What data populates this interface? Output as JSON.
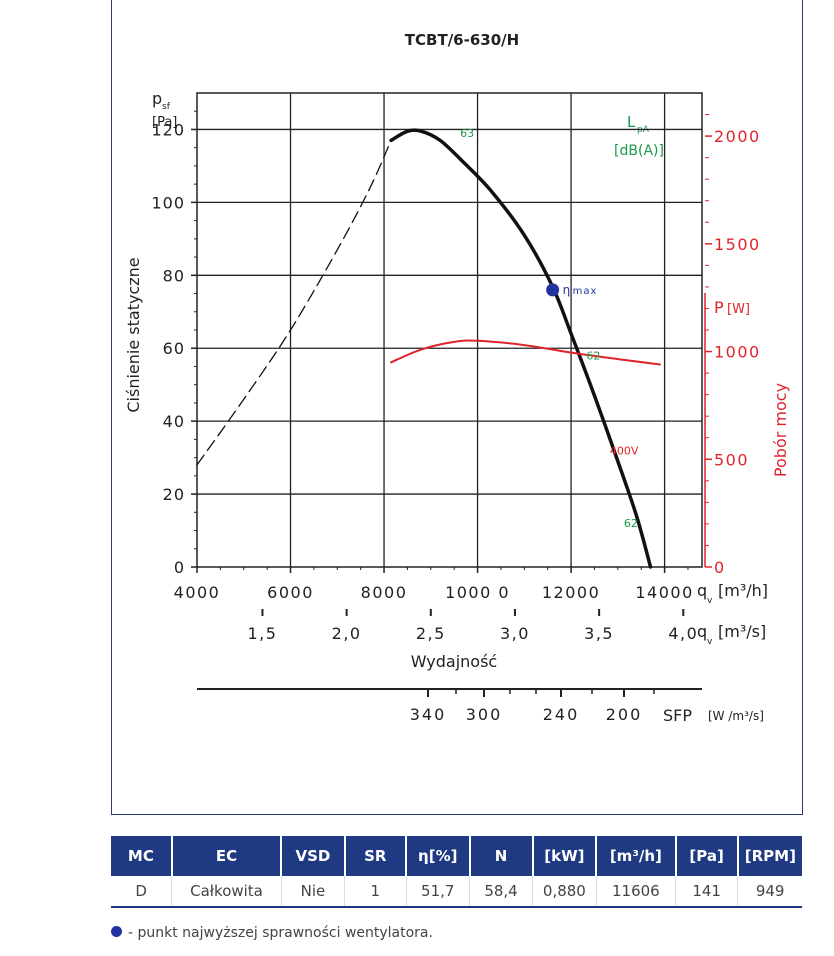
{
  "chart_data": {
    "type": "line",
    "title": "TCBT/6-630/H",
    "ylabel": "Ciśnienie statyczne",
    "y_symbol": "p",
    "y_symbol_sub": "sf",
    "y_unit": "[Pa]",
    "ylim": [
      0,
      130
    ],
    "y_ticks": [
      "0",
      "20",
      "40",
      "60",
      "80",
      "100",
      "120"
    ],
    "xlabel": "Wydajność",
    "xlim": [
      4000,
      14800
    ],
    "x_ticks_m3h": [
      "4000",
      "6000",
      "8000",
      "1000 0",
      "12000",
      "14000"
    ],
    "x_unit_m3h": "q",
    "x_unit_m3h_sub": "v",
    "x_unit_m3h_rest": "[m³/h]",
    "x_ticks_m3s": [
      "1,5",
      "2,0",
      "2,5",
      "3,0",
      "3,5",
      "4,0"
    ],
    "x_unit_m3s": "q",
    "x_unit_m3s_sub": "v",
    "x_unit_m3s_rest": "[m³/s]",
    "right_axis": {
      "label": "Pobór mocy",
      "symbol": "P",
      "unit": "[W]",
      "ylim": [
        0,
        2200
      ],
      "ticks": [
        "0",
        "500",
        "1000",
        "1500",
        "2000"
      ],
      "color": "#e0242b"
    },
    "sfp_axis": {
      "ticks": [
        "340",
        "300",
        "240",
        "200"
      ],
      "label": "SFP",
      "unit": "[W /m³/s]"
    },
    "lpa_label": "L",
    "lpa_sub": "pA",
    "lpa_unit": "[dB(A)]",
    "lpa_color": "#1a9a4a",
    "series": [
      {
        "style": "dashed",
        "color": "#111111",
        "x": [
          4000,
          5000,
          6000,
          7000,
          7700,
          8150
        ],
        "y": [
          28,
          46,
          65,
          87,
          104,
          117
        ]
      },
      {
        "style": "solid",
        "color": "#111111",
        "x": [
          8150,
          8500,
          8800,
          9200,
          9700,
          10300,
          11000,
          11600,
          12000,
          12500,
          13000,
          13400,
          13700
        ],
        "y": [
          117,
          119.5,
          119.5,
          117,
          111,
          103,
          91,
          77,
          64,
          47,
          29,
          14,
          0
        ]
      },
      {
        "name": "400V",
        "style": "solid",
        "color": "#e0242b",
        "axis": "right",
        "x": [
          8150,
          8800,
          9500,
          10000,
          11000,
          12000,
          13000,
          13900
        ],
        "y": [
          950,
          1010,
          1045,
          1050,
          1030,
          995,
          965,
          940
        ]
      }
    ],
    "annotations": [
      {
        "text": "63",
        "x": 9500,
        "y": 119
      },
      {
        "text": "62",
        "x": 12200,
        "y": 58
      },
      {
        "text": "62",
        "x": 13000,
        "y": 12
      },
      {
        "text": "400V",
        "x": 13000,
        "y": 32
      }
    ],
    "max_efficiency_point": {
      "x": 11606,
      "y": 76,
      "label": "η",
      "label_sub": "max",
      "color": "#2233a0"
    }
  },
  "table": {
    "headers": [
      "MC",
      "EC",
      "VSD",
      "SR",
      "η[%]",
      "N",
      "[kW]",
      "[m³/h]",
      "[Pa]",
      "[RPM]"
    ],
    "row": [
      "D",
      "Całkowita",
      "Nie",
      "1",
      "51,7",
      "58,4",
      "0,880",
      "11606",
      "141",
      "949"
    ]
  },
  "footnote": "- punkt najwyższej sprawności wentylatora."
}
